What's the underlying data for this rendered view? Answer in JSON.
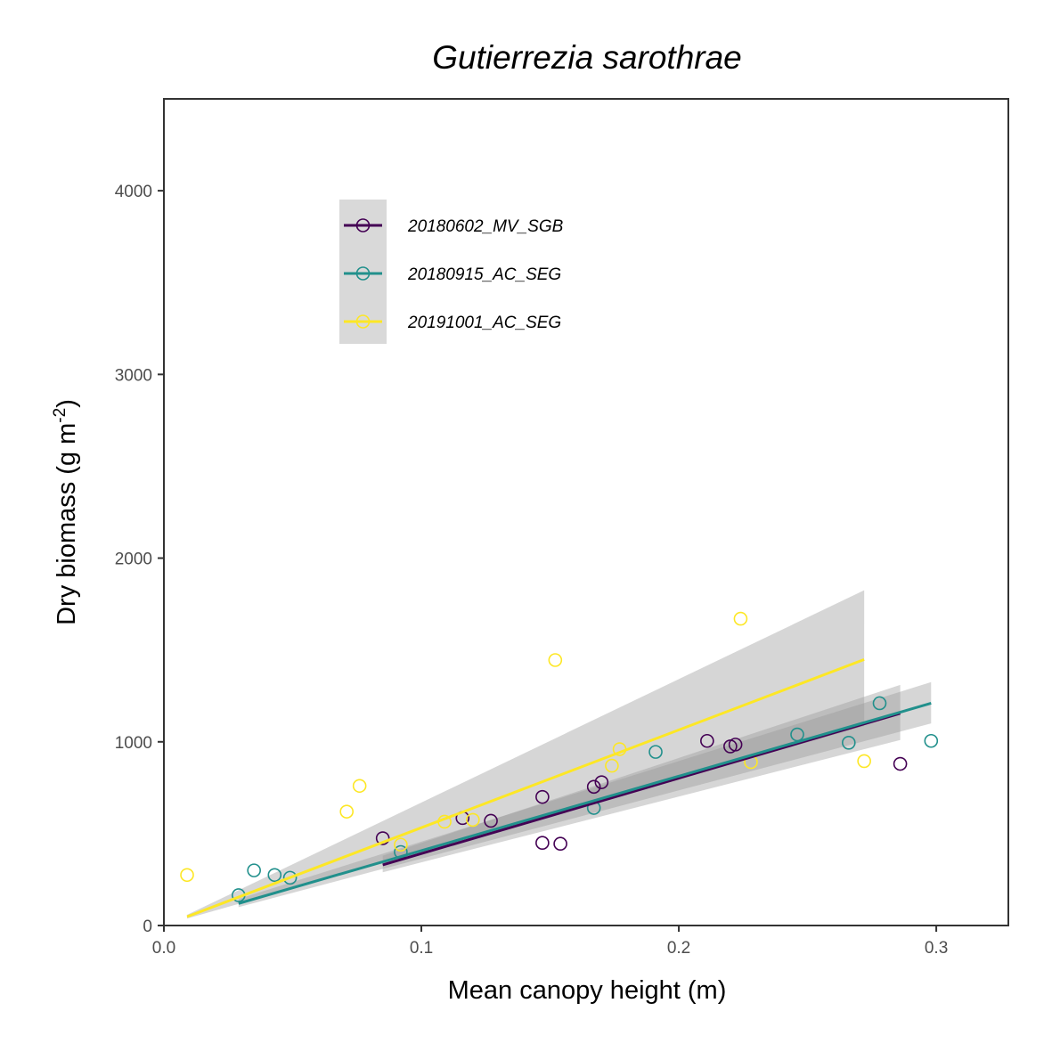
{
  "chart_data": {
    "type": "scatter",
    "title": "Gutierrezia sarothrae",
    "xlabel": "Mean canopy height (m)",
    "ylabel": "Dry biomass (g m",
    "ylabel_superscript": "-2",
    "ylabel_suffix": ")",
    "xlim": [
      0.0,
      0.328
    ],
    "ylim": [
      0,
      4500
    ],
    "x_ticks": [
      0.0,
      0.1,
      0.2,
      0.3
    ],
    "x_tick_labels": [
      "0.0",
      "0.1",
      "0.2",
      "0.3"
    ],
    "y_ticks": [
      0,
      1000,
      2000,
      3000,
      4000
    ],
    "y_tick_labels": [
      "0",
      "1000",
      "2000",
      "3000",
      "4000"
    ],
    "grid": false,
    "legend_position": "top-left",
    "series": [
      {
        "name": "20180602_MV_SGB",
        "color": "#440154",
        "points": [
          [
            0.085,
            475
          ],
          [
            0.116,
            585
          ],
          [
            0.127,
            570
          ],
          [
            0.147,
            700
          ],
          [
            0.147,
            450
          ],
          [
            0.154,
            445
          ],
          [
            0.167,
            755
          ],
          [
            0.17,
            780
          ],
          [
            0.211,
            1005
          ],
          [
            0.22,
            975
          ],
          [
            0.222,
            985
          ],
          [
            0.286,
            880
          ]
        ],
        "fit": {
          "x0": 0.085,
          "x1": 0.286,
          "y0": 330,
          "y1": 1155
        },
        "band": {
          "x0": 0.085,
          "x1": 0.286,
          "lower0": 290,
          "upper0": 380,
          "lower1": 1010,
          "upper1": 1310
        }
      },
      {
        "name": "20180915_AC_SEG",
        "color": "#21908C",
        "points": [
          [
            0.029,
            165
          ],
          [
            0.035,
            300
          ],
          [
            0.043,
            275
          ],
          [
            0.049,
            260
          ],
          [
            0.092,
            400
          ],
          [
            0.167,
            640
          ],
          [
            0.191,
            945
          ],
          [
            0.246,
            1040
          ],
          [
            0.266,
            995
          ],
          [
            0.278,
            1210
          ],
          [
            0.298,
            1005
          ]
        ],
        "fit": {
          "x0": 0.029,
          "x1": 0.298,
          "y0": 120,
          "y1": 1210
        },
        "band": {
          "x0": 0.029,
          "x1": 0.298,
          "lower0": 100,
          "upper0": 145,
          "lower1": 1100,
          "upper1": 1325
        }
      },
      {
        "name": "20191001_AC_SEG",
        "color": "#FDE725",
        "points": [
          [
            0.009,
            275
          ],
          [
            0.071,
            620
          ],
          [
            0.076,
            760
          ],
          [
            0.092,
            440
          ],
          [
            0.109,
            565
          ],
          [
            0.12,
            575
          ],
          [
            0.152,
            1445
          ],
          [
            0.174,
            870
          ],
          [
            0.177,
            960
          ],
          [
            0.224,
            1670
          ],
          [
            0.228,
            890
          ],
          [
            0.272,
            895
          ]
        ],
        "fit": {
          "x0": 0.009,
          "x1": 0.272,
          "y0": 48,
          "y1": 1448
        },
        "band": {
          "x0": 0.009,
          "x1": 0.272,
          "lower0": 38,
          "upper0": 58,
          "lower1": 1085,
          "upper1": 1825
        }
      }
    ]
  }
}
